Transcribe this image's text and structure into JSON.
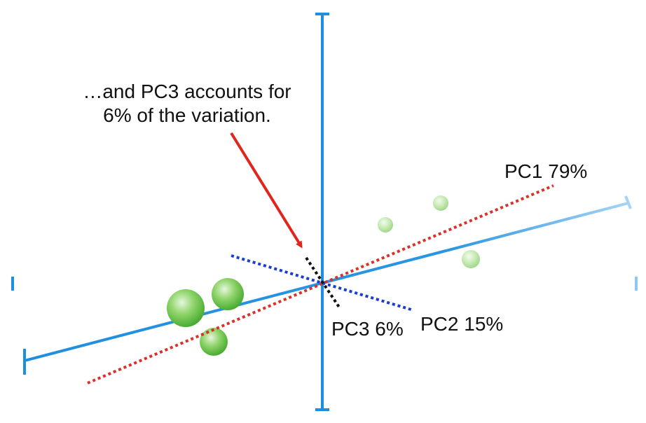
{
  "annotation": {
    "lines": [
      "…and PC3 accounts for",
      "6% of the variation."
    ]
  },
  "labels": {
    "pc1": "PC1 79%",
    "pc2": "PC2 15%",
    "pc3": "PC3 6%"
  }
}
